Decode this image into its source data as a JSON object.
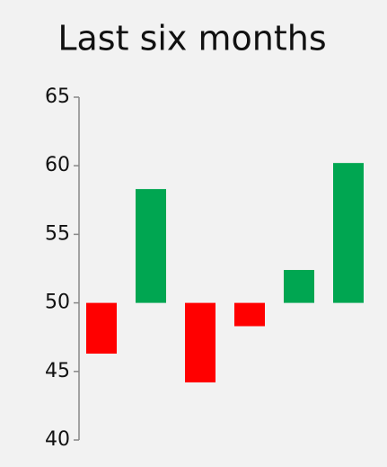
{
  "chart_data": {
    "type": "bar",
    "title": "Last six months",
    "categories": [
      null,
      null,
      null,
      null,
      null,
      null
    ],
    "values": [
      46.3,
      58.3,
      44.2,
      48.3,
      52.4,
      60.2
    ],
    "baseline": 50,
    "colors": [
      "#ff0000",
      "#00a651",
      "#ff0000",
      "#ff0000",
      "#00a651",
      "#00a651"
    ],
    "ylim": [
      40,
      65
    ],
    "yticks": [
      40,
      45,
      50,
      55,
      60,
      65
    ],
    "grid": false
  }
}
